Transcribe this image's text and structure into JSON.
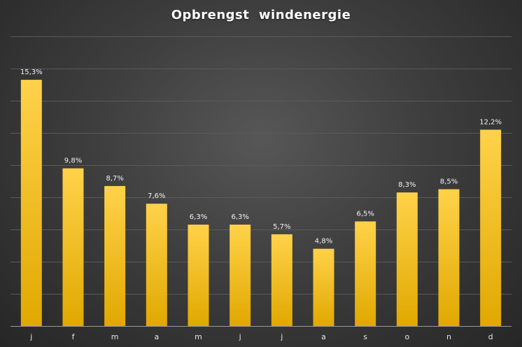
{
  "chart_data": {
    "type": "bar",
    "title": "Opbrengst  windenergie",
    "xlabel": "",
    "ylabel": "",
    "categories": [
      "j",
      "f",
      "m",
      "a",
      "m",
      "j",
      "j",
      "a",
      "s",
      "o",
      "n",
      "d"
    ],
    "values": [
      15.3,
      9.8,
      8.7,
      7.6,
      6.3,
      6.3,
      5.7,
      4.8,
      6.5,
      8.3,
      8.5,
      12.2
    ],
    "data_labels": [
      "15,3%",
      "9,8%",
      "8,7%",
      "7,6%",
      "6,3%",
      "6,3%",
      "5,7%",
      "4,8%",
      "6,5%",
      "8,3%",
      "8,5%",
      "12,2%"
    ],
    "ylim": [
      0,
      18
    ],
    "grid": true,
    "legend": "none",
    "colors": {
      "bar_top": "#ffd24a",
      "bar_bottom": "#e0a800",
      "background": "#3a3a3a"
    }
  }
}
